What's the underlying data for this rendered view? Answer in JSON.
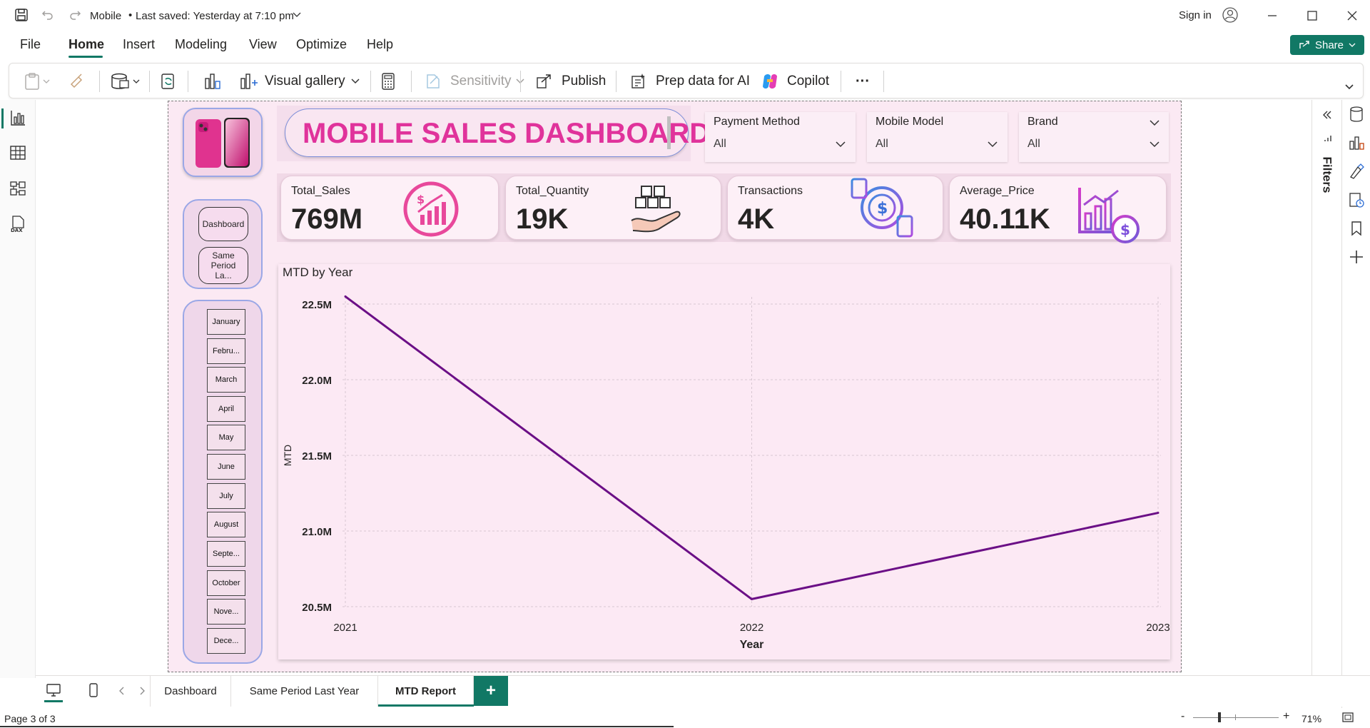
{
  "title_bar": {
    "file_name": "Mobile",
    "save_status": "Last saved: Yesterday at 7:10 pm",
    "sign_in": "Sign in"
  },
  "menu": [
    "File",
    "Home",
    "Insert",
    "Modeling",
    "View",
    "Optimize",
    "Help"
  ],
  "menu_active": "Home",
  "share_label": "Share",
  "ribbon": {
    "visual_gallery": "Visual gallery",
    "sensitivity": "Sensitivity",
    "publish": "Publish",
    "prep_data": "Prep data for AI",
    "copilot": "Copilot",
    "more": "···"
  },
  "filters_label": "Filters",
  "report": {
    "title": "MOBILE SALES DASHBOARD",
    "nav": {
      "dashboard": "Dashboard",
      "same_period": "Same Period La..."
    },
    "months": [
      "January",
      "Febru...",
      "March",
      "April",
      "May",
      "June",
      "July",
      "August",
      "Septe...",
      "October",
      "Nove...",
      "Dece..."
    ],
    "slicers": [
      {
        "label": "Payment Method",
        "value": "All"
      },
      {
        "label": "Mobile Model",
        "value": "All"
      },
      {
        "label": "Brand",
        "value": "All"
      }
    ],
    "kpis": [
      {
        "title": "Total_Sales",
        "value": "769M"
      },
      {
        "title": "Total_Quantity",
        "value": "19K"
      },
      {
        "title": "Transactions",
        "value": "4K"
      },
      {
        "title": "Average_Price",
        "value": "40.11K"
      }
    ]
  },
  "chart_data": {
    "type": "line",
    "title": "MTD by Year",
    "xlabel": "Year",
    "ylabel": "MTD",
    "x": [
      "2021",
      "2022",
      "2023"
    ],
    "series": [
      {
        "values": [
          22.55,
          20.55,
          21.12
        ]
      }
    ],
    "ylim": [
      20.5,
      22.5
    ],
    "yticks": [
      "20.5M",
      "21.0M",
      "21.5M",
      "22.0M",
      "22.5M"
    ],
    "grid": true,
    "color": "#6b0f86"
  },
  "page_tabs": [
    "Dashboard",
    "Same Period Last Year",
    "MTD Report"
  ],
  "page_tabs_active": "MTD Report",
  "add_page": "+",
  "status": {
    "page": "Page 3 of 3",
    "zoom": "71%"
  },
  "colors": {
    "accent": "#117865",
    "title_pink": "#e0339b",
    "chart_line": "#6b0f86"
  }
}
